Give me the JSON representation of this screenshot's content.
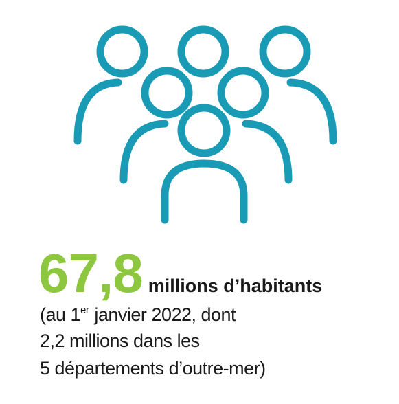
{
  "headline": {
    "number": "67,8",
    "unit": "millions d’habitants"
  },
  "note": {
    "line1": {
      "before": "(au 1",
      "sup": "er",
      "after": "janvier 2022, dont"
    },
    "line2": "2,2 millions dans les",
    "line3": "5 départements d’outre-mer)"
  }
}
